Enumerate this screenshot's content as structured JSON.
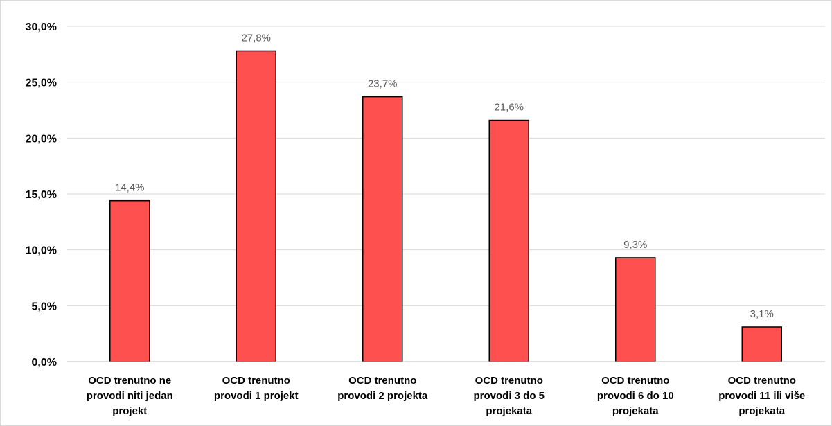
{
  "chart_data": {
    "type": "bar",
    "categories": [
      [
        "OCD trenutno ne",
        "provodi niti jedan",
        "projekt"
      ],
      [
        "OCD trenutno",
        "provodi 1 projekt"
      ],
      [
        "OCD trenutno",
        "provodi 2 projekta"
      ],
      [
        "OCD trenutno",
        "provodi 3 do 5",
        "projekata"
      ],
      [
        "OCD trenutno",
        "provodi 6 do 10",
        "projekata"
      ],
      [
        "OCD trenutno",
        "provodi 11 ili više",
        "projekata"
      ]
    ],
    "values": [
      14.4,
      27.8,
      23.7,
      21.6,
      9.3,
      3.1
    ],
    "data_labels": [
      "14,4%",
      "27,8%",
      "23,7%",
      "21,6%",
      "9,3%",
      "3,1%"
    ],
    "y_ticks": [
      0,
      5,
      10,
      15,
      20,
      25,
      30
    ],
    "y_tick_labels": [
      "0,0%",
      "5,0%",
      "10,0%",
      "15,0%",
      "20,0%",
      "25,0%",
      "30,0%"
    ],
    "ylim": [
      0,
      30
    ],
    "grid": true,
    "legend": "none",
    "title": "",
    "xlabel": "",
    "ylabel": "",
    "bar_color": "#FF5050",
    "bar_border_color": "#000000",
    "gridline_color": "#D9D9D9"
  }
}
